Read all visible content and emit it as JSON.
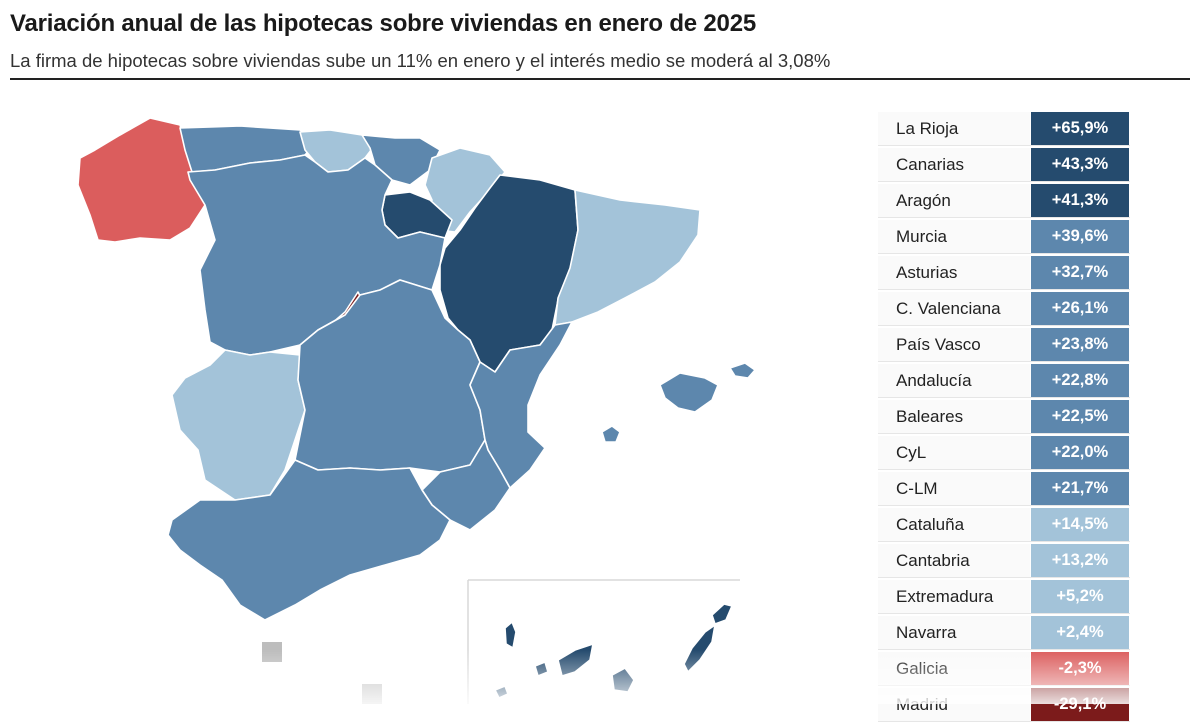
{
  "header": {
    "title": "Variación anual de las hipotecas sobre viviendas en enero de 2025",
    "subtitle": "La firma de hipotecas sobre viviendas sube un 11% en enero y el interés medio se moderá al 3,08%"
  },
  "colors": {
    "very_high": "#254b6e",
    "high": "#5d87ad",
    "mid": "#a3c3d9",
    "negative": "#db5d5d",
    "very_negative": "#7c1b1b",
    "outline": "#ffffff"
  },
  "regions": [
    {
      "name": "La Rioja",
      "value": "+65,9%",
      "pct": 65.9,
      "tier": "very_high"
    },
    {
      "name": "Canarias",
      "value": "+43,3%",
      "pct": 43.3,
      "tier": "very_high"
    },
    {
      "name": "Aragón",
      "value": "+41,3%",
      "pct": 41.3,
      "tier": "very_high"
    },
    {
      "name": "Murcia",
      "value": "+39,6%",
      "pct": 39.6,
      "tier": "high"
    },
    {
      "name": "Asturias",
      "value": "+32,7%",
      "pct": 32.7,
      "tier": "high"
    },
    {
      "name": "C. Valenciana",
      "value": "+26,1%",
      "pct": 26.1,
      "tier": "high"
    },
    {
      "name": "País Vasco",
      "value": "+23,8%",
      "pct": 23.8,
      "tier": "high"
    },
    {
      "name": "Andalucía",
      "value": "+22,8%",
      "pct": 22.8,
      "tier": "high"
    },
    {
      "name": "Baleares",
      "value": "+22,5%",
      "pct": 22.5,
      "tier": "high"
    },
    {
      "name": "CyL",
      "value": "+22,0%",
      "pct": 22.0,
      "tier": "high"
    },
    {
      "name": "C-LM",
      "value": "+21,7%",
      "pct": 21.7,
      "tier": "high"
    },
    {
      "name": "Cataluña",
      "value": "+14,5%",
      "pct": 14.5,
      "tier": "mid"
    },
    {
      "name": "Cantabria",
      "value": "+13,2%",
      "pct": 13.2,
      "tier": "mid"
    },
    {
      "name": "Extremadura",
      "value": "+5,2%",
      "pct": 5.2,
      "tier": "mid"
    },
    {
      "name": "Navarra",
      "value": "+2,4%",
      "pct": 2.4,
      "tier": "mid"
    },
    {
      "name": "Galicia",
      "value": "-2,3%",
      "pct": -2.3,
      "tier": "negative"
    },
    {
      "name": "Madrid",
      "value": "-29,1%",
      "pct": -29.1,
      "tier": "very_negative"
    }
  ]
}
